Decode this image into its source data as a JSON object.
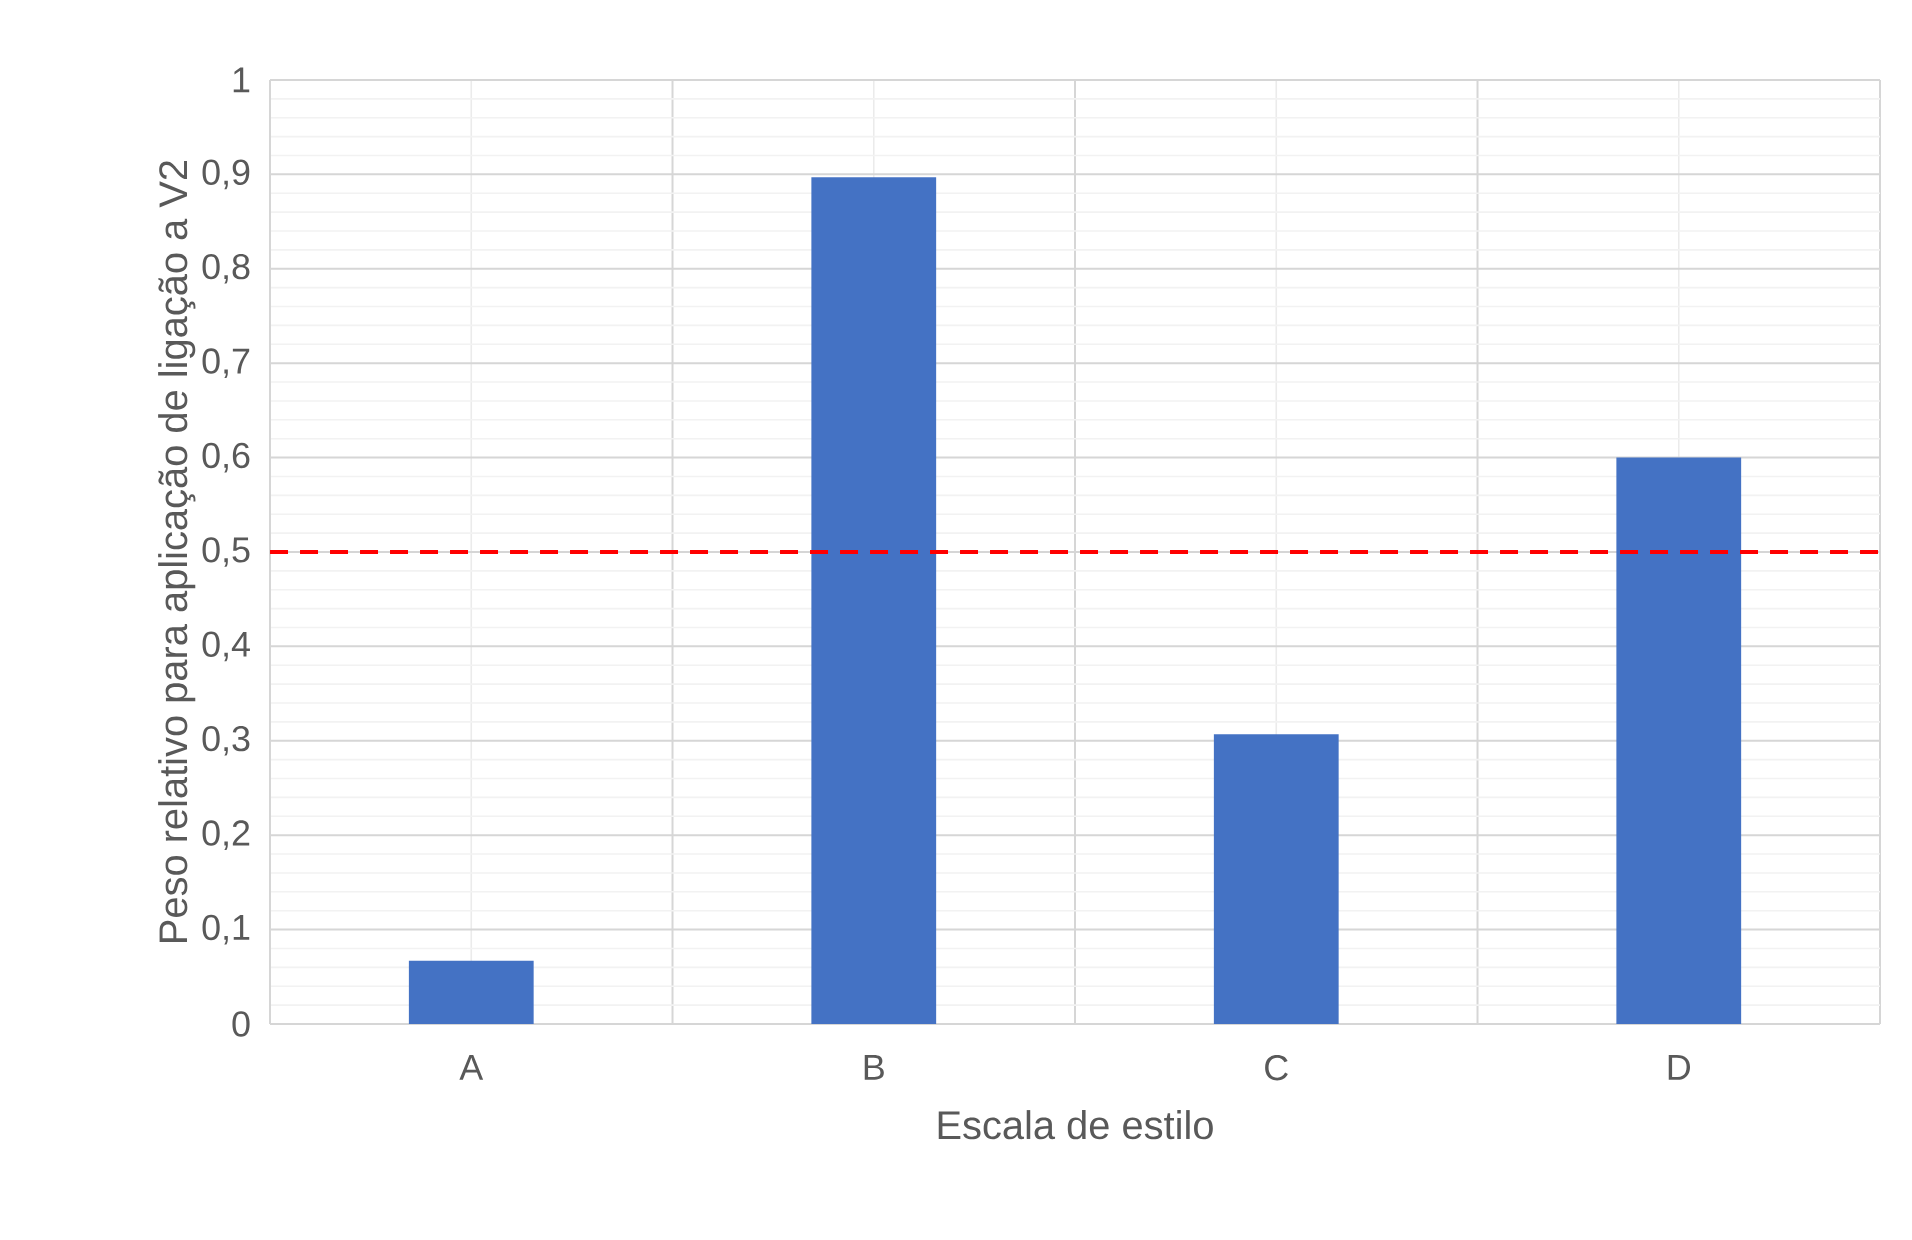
{
  "chart_data": {
    "type": "bar",
    "xlabel": "Escala de estilo",
    "ylabel": "Peso relativo para aplicação de ligação a V2",
    "categories": [
      "A",
      "B",
      "C",
      "D"
    ],
    "values": [
      0.067,
      0.897,
      0.307,
      0.6
    ],
    "color": "#4472c4",
    "ylim": [
      0,
      1
    ],
    "yticks": [
      0,
      {
        "value": 0.1,
        "label": "0,1"
      },
      {
        "value": 0.2,
        "label": "0,2"
      },
      {
        "value": 0.3,
        "label": "0,3"
      },
      {
        "value": 0.4,
        "label": "0,4"
      },
      {
        "value": 0.5,
        "label": "0,5"
      },
      {
        "value": 0.6,
        "label": "0,6"
      },
      {
        "value": 0.7,
        "label": "0,7"
      },
      {
        "value": 0.8,
        "label": "0,8"
      },
      {
        "value": 0.9,
        "label": "0,9"
      },
      1
    ],
    "grid": true,
    "ref_lines": [
      {
        "axis": "y",
        "value": 0.5,
        "color": "#ff0000",
        "line_style": "dashed"
      }
    ]
  }
}
